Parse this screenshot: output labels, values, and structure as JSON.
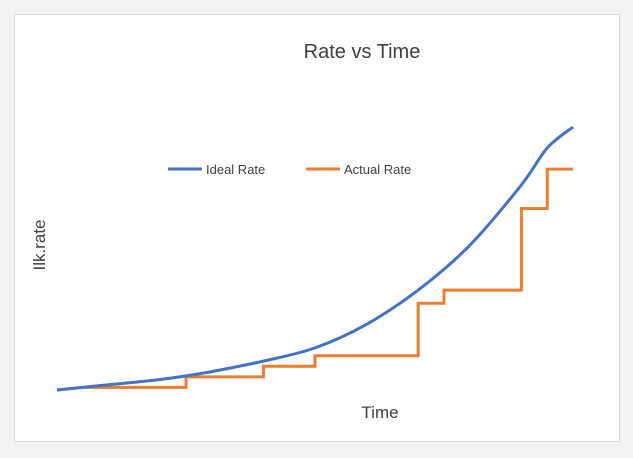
{
  "chart_data": {
    "type": "line",
    "title": "Rate vs Time",
    "xlabel": "Time",
    "ylabel": "Ilk.rate",
    "legend_position": "top",
    "axes_visible": false,
    "grid": false,
    "xlim": [
      0,
      100
    ],
    "ylim": [
      0,
      100
    ],
    "series": [
      {
        "name": "Ideal Rate",
        "color": "#4472c4",
        "style": "smooth",
        "x": [
          0,
          10,
          20,
          30,
          40,
          50,
          60,
          70,
          80,
          90,
          95,
          100
        ],
        "y": [
          0,
          2,
          4,
          7,
          11,
          16,
          25,
          38,
          55,
          78,
          92,
          100
        ]
      },
      {
        "name": "Actual Rate",
        "color": "#ed7d31",
        "style": "step",
        "x": [
          0,
          5,
          25,
          25,
          40,
          40,
          50,
          50,
          70,
          70,
          75,
          75,
          90,
          90,
          95,
          95,
          100
        ],
        "y": [
          0,
          1,
          1,
          5,
          5,
          9,
          9,
          13,
          13,
          33,
          33,
          38,
          38,
          69,
          69,
          84,
          84
        ]
      }
    ]
  },
  "colors": {
    "background": "#f3f3f3",
    "plot_background": "#ffffff",
    "text": "#404040"
  }
}
